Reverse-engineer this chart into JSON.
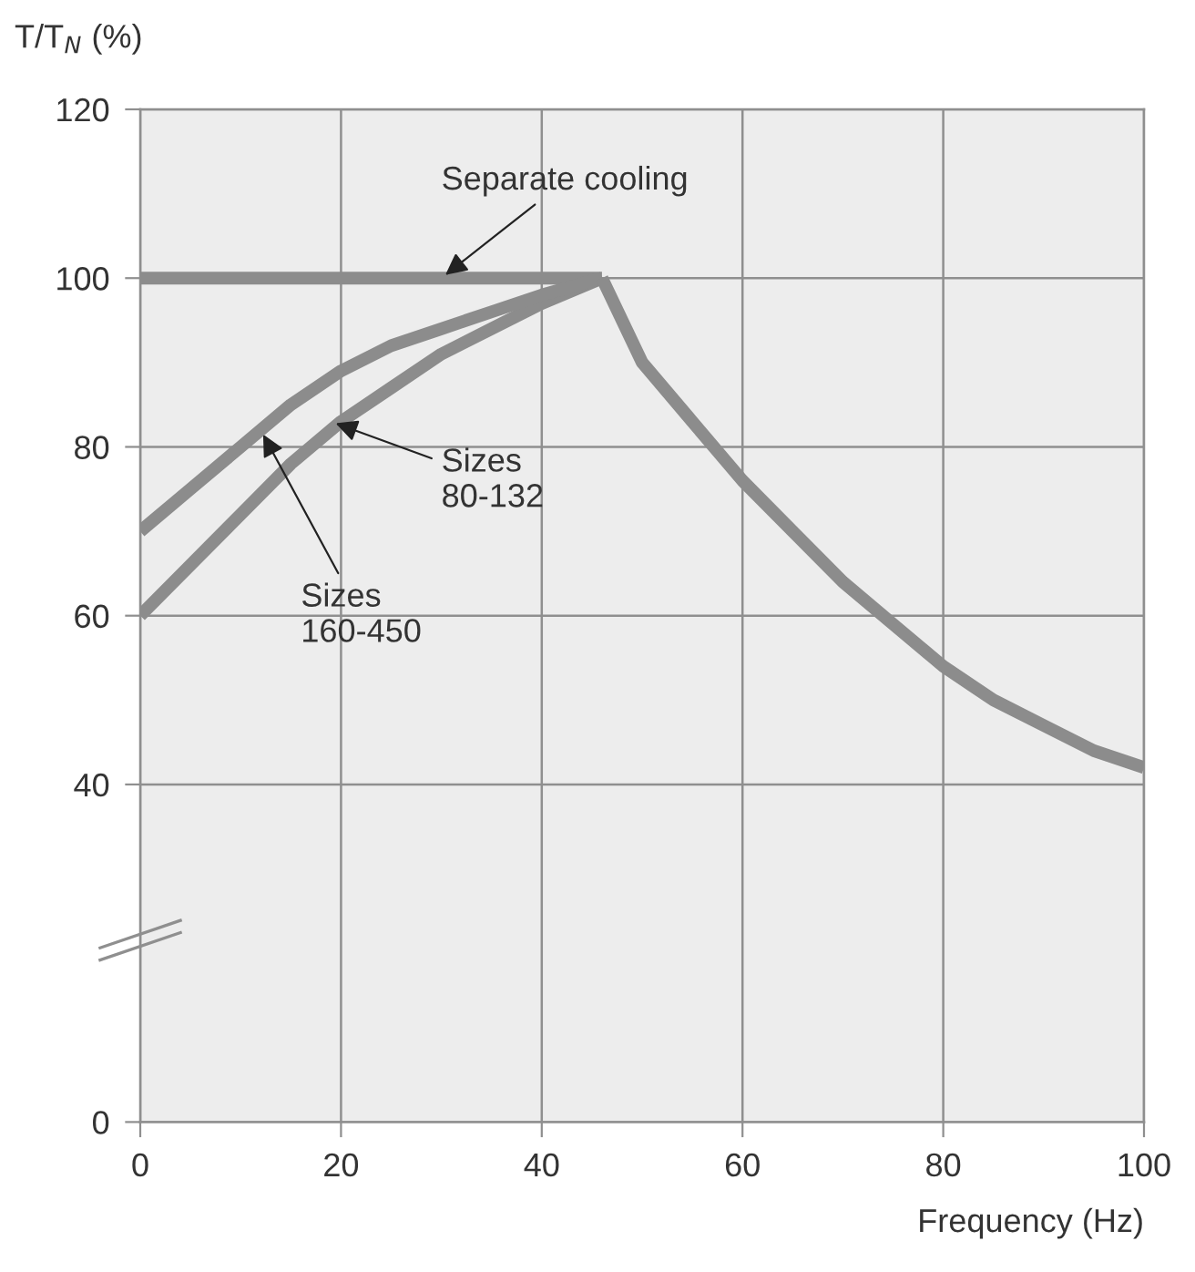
{
  "chart_data": {
    "type": "line",
    "ylabel": "T/T$_{N}$ (%)",
    "xlabel": "Frequency (Hz)",
    "xlim": [
      0,
      100
    ],
    "ylim": [
      0,
      120
    ],
    "xticks": [
      0,
      20,
      40,
      60,
      80,
      100
    ],
    "yticks": [
      0,
      40,
      60,
      80,
      100,
      120
    ],
    "grid": true,
    "marker": "none",
    "line_style": "solid",
    "series": [
      {
        "color": "#8c8c8c",
        "x": [
          0,
          46
        ],
        "values": [
          100,
          100
        ]
      },
      {
        "color": "#8c8c8c",
        "x": [
          0,
          5,
          10,
          15,
          20,
          25,
          30,
          35,
          40,
          46
        ],
        "values": [
          60,
          66,
          72,
          78,
          83,
          87,
          91,
          94,
          97,
          100
        ]
      },
      {
        "color": "#8c8c8c",
        "x": [
          0,
          5,
          10,
          15,
          20,
          25,
          30,
          35,
          40,
          46
        ],
        "values": [
          70,
          75,
          80,
          85,
          89,
          92,
          94,
          96,
          98,
          100
        ]
      },
      {
        "color": "#8c8c8c",
        "x": [
          46,
          50,
          55,
          60,
          65,
          70,
          75,
          80,
          85,
          90,
          95,
          100
        ],
        "values": [
          100,
          90,
          83,
          76,
          70,
          64,
          59,
          54,
          50,
          47,
          44,
          42
        ]
      }
    ],
    "annotations": [
      {
        "text": "Separate cooling",
        "x": 30,
        "y": 100
      },
      {
        "text": "Sizes\n80-132",
        "x": 19,
        "y": 83
      },
      {
        "text": "Sizes\n160-450",
        "x": 12,
        "y": 82
      }
    ]
  }
}
